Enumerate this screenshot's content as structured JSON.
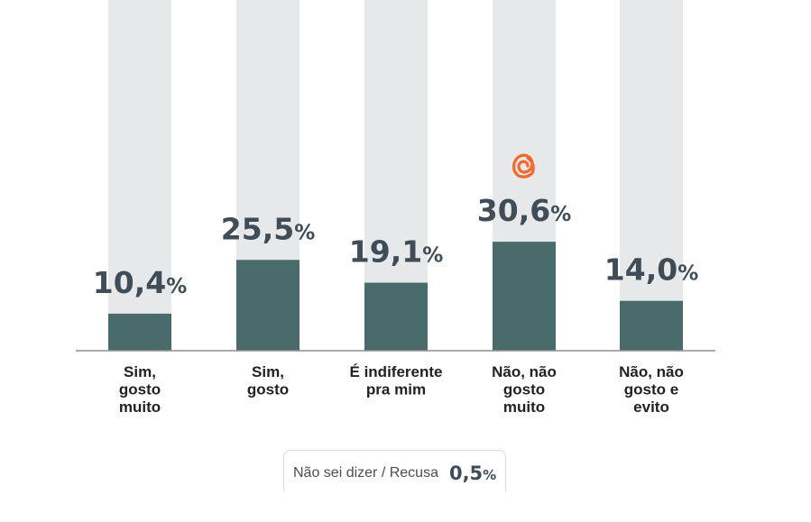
{
  "chart_data": {
    "type": "bar",
    "categories": [
      [
        "Sim,",
        "gosto",
        "muito"
      ],
      [
        "Sim,",
        "gosto"
      ],
      [
        "É indiferente",
        "pra mim"
      ],
      [
        "Não, não",
        "gosto",
        "muito"
      ],
      [
        "Não, não",
        "gosto e",
        "evito"
      ]
    ],
    "values": [
      10.4,
      25.5,
      19.1,
      30.6,
      14.0
    ],
    "value_labels": [
      "10,4",
      "25,5",
      "19,1",
      "30,6",
      "14,0"
    ],
    "value_suffix": "%",
    "ylim": [
      0,
      100
    ],
    "bar_color": "#4a6b6b",
    "track_color": "#e7e8e9",
    "label_color": "#3e4d57",
    "highlight": {
      "index": 3,
      "icon": "spiral-logo-icon",
      "color": "#f26a2e"
    },
    "title": "",
    "xlabel": "",
    "ylabel": ""
  },
  "footnote": {
    "label": "Não sei dizer / Recusa",
    "value": "0,5",
    "suffix": "%"
  }
}
